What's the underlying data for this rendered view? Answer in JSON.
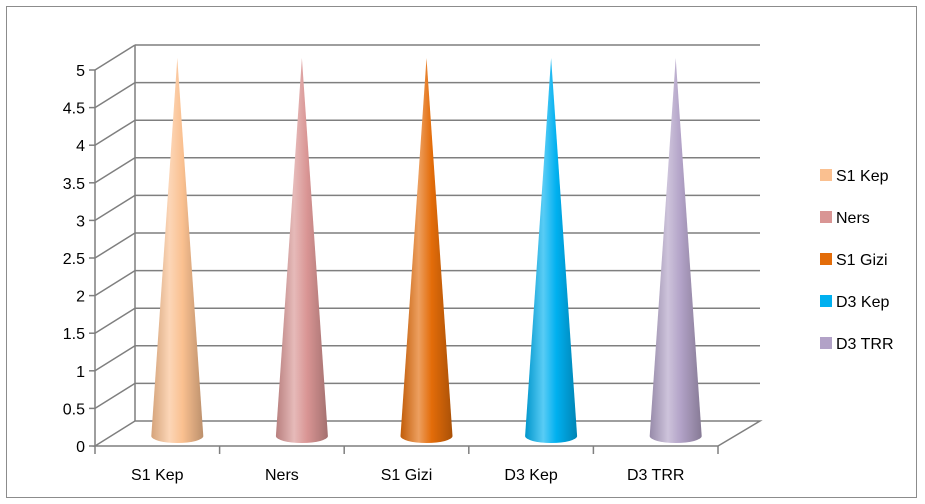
{
  "chart_data": {
    "type": "bar",
    "style": "3d-cone",
    "categories": [
      "S1 Kep",
      "Ners",
      "S1 Gizi",
      "D3 Kep",
      "D3 TRR"
    ],
    "series": [
      {
        "name": "S1 Kep",
        "values": [
          5,
          null,
          null,
          null,
          null
        ],
        "color": "#FAC090"
      },
      {
        "name": "Ners",
        "values": [
          null,
          5,
          null,
          null,
          null
        ],
        "color": "#D99594"
      },
      {
        "name": "S1 Gizi",
        "values": [
          null,
          null,
          5,
          null,
          null
        ],
        "color": "#E36C09"
      },
      {
        "name": "D3 Kep",
        "values": [
          null,
          null,
          null,
          5,
          null
        ],
        "color": "#00B0F0"
      },
      {
        "name": "D3 TRR",
        "values": [
          null,
          null,
          null,
          null,
          5
        ],
        "color": "#B2A2C7"
      }
    ],
    "y_ticks": [
      "0",
      "0.5",
      "1",
      "1.5",
      "2",
      "2.5",
      "3",
      "3.5",
      "4",
      "4.5",
      "5"
    ],
    "ylim": [
      0,
      5
    ],
    "grid": true,
    "legend_position": "right",
    "title": "",
    "xlabel": "",
    "ylabel": ""
  }
}
